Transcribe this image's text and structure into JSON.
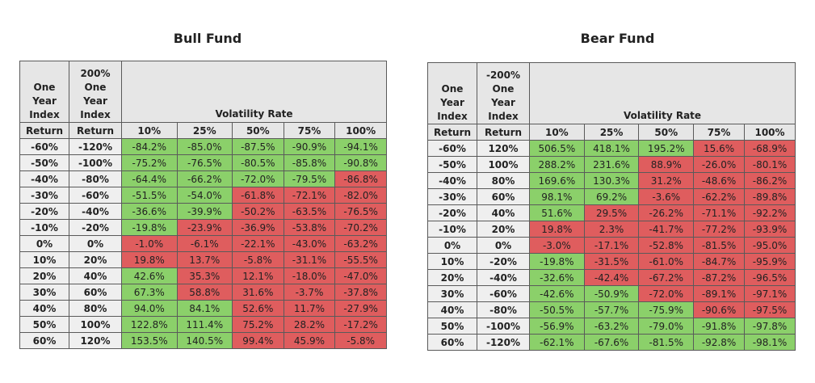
{
  "chart_data": [
    {
      "type": "table",
      "title": "Bull Fund",
      "col_headers": {
        "index_return": "One Year Index Return",
        "leveraged_return": "200% One Year Index Return",
        "group": "Volatility Rate",
        "volatility": [
          "10%",
          "25%",
          "50%",
          "75%",
          "100%"
        ]
      },
      "rows": [
        {
          "index": "-60%",
          "lev": "-120%",
          "values": [
            "-84.2%",
            "-85.0%",
            "-87.5%",
            "-90.9%",
            "-94.1%"
          ],
          "colors": [
            "g",
            "g",
            "g",
            "g",
            "g"
          ]
        },
        {
          "index": "-50%",
          "lev": "-100%",
          "values": [
            "-75.2%",
            "-76.5%",
            "-80.5%",
            "-85.8%",
            "-90.8%"
          ],
          "colors": [
            "g",
            "g",
            "g",
            "g",
            "g"
          ]
        },
        {
          "index": "-40%",
          "lev": "-80%",
          "values": [
            "-64.4%",
            "-66.2%",
            "-72.0%",
            "-79.5%",
            "-86.8%"
          ],
          "colors": [
            "g",
            "g",
            "g",
            "g",
            "r"
          ]
        },
        {
          "index": "-30%",
          "lev": "-60%",
          "values": [
            "-51.5%",
            "-54.0%",
            "-61.8%",
            "-72.1%",
            "-82.0%"
          ],
          "colors": [
            "g",
            "g",
            "r",
            "r",
            "r"
          ]
        },
        {
          "index": "-20%",
          "lev": "-40%",
          "values": [
            "-36.6%",
            "-39.9%",
            "-50.2%",
            "-63.5%",
            "-76.5%"
          ],
          "colors": [
            "g",
            "g",
            "r",
            "r",
            "r"
          ]
        },
        {
          "index": "-10%",
          "lev": "-20%",
          "values": [
            "-19.8%",
            "-23.9%",
            "-36.9%",
            "-53.8%",
            "-70.2%"
          ],
          "colors": [
            "g",
            "r",
            "r",
            "r",
            "r"
          ]
        },
        {
          "index": "0%",
          "lev": "0%",
          "values": [
            "-1.0%",
            "-6.1%",
            "-22.1%",
            "-43.0%",
            "-63.2%"
          ],
          "colors": [
            "r",
            "r",
            "r",
            "r",
            "r"
          ]
        },
        {
          "index": "10%",
          "lev": "20%",
          "values": [
            "19.8%",
            "13.7%",
            "-5.8%",
            "-31.1%",
            "-55.5%"
          ],
          "colors": [
            "r",
            "r",
            "r",
            "r",
            "r"
          ]
        },
        {
          "index": "20%",
          "lev": "40%",
          "values": [
            "42.6%",
            "35.3%",
            "12.1%",
            "-18.0%",
            "-47.0%"
          ],
          "colors": [
            "g",
            "r",
            "r",
            "r",
            "r"
          ]
        },
        {
          "index": "30%",
          "lev": "60%",
          "values": [
            "67.3%",
            "58.8%",
            "31.6%",
            "-3.7%",
            "-37.8%"
          ],
          "colors": [
            "g",
            "r",
            "r",
            "r",
            "r"
          ]
        },
        {
          "index": "40%",
          "lev": "80%",
          "values": [
            "94.0%",
            "84.1%",
            "52.6%",
            "11.7%",
            "-27.9%"
          ],
          "colors": [
            "g",
            "g",
            "r",
            "r",
            "r"
          ]
        },
        {
          "index": "50%",
          "lev": "100%",
          "values": [
            "122.8%",
            "111.4%",
            "75.2%",
            "28.2%",
            "-17.2%"
          ],
          "colors": [
            "g",
            "g",
            "r",
            "r",
            "r"
          ]
        },
        {
          "index": "60%",
          "lev": "120%",
          "values": [
            "153.5%",
            "140.5%",
            "99.4%",
            "45.9%",
            "-5.8%"
          ],
          "colors": [
            "g",
            "g",
            "r",
            "r",
            "r"
          ]
        }
      ]
    },
    {
      "type": "table",
      "title": "Bear Fund",
      "col_headers": {
        "index_return": "One Year Index Return",
        "leveraged_return": "-200% One Year Index Return",
        "group": "Volatility Rate",
        "volatility": [
          "10%",
          "25%",
          "50%",
          "75%",
          "100%"
        ]
      },
      "rows": [
        {
          "index": "-60%",
          "lev": "120%",
          "values": [
            "506.5%",
            "418.1%",
            "195.2%",
            "15.6%",
            "-68.9%"
          ],
          "colors": [
            "g",
            "g",
            "g",
            "r",
            "r"
          ]
        },
        {
          "index": "-50%",
          "lev": "100%",
          "values": [
            "288.2%",
            "231.6%",
            "88.9%",
            "-26.0%",
            "-80.1%"
          ],
          "colors": [
            "g",
            "g",
            "r",
            "r",
            "r"
          ]
        },
        {
          "index": "-40%",
          "lev": "80%",
          "values": [
            "169.6%",
            "130.3%",
            "31.2%",
            "-48.6%",
            "-86.2%"
          ],
          "colors": [
            "g",
            "g",
            "r",
            "r",
            "r"
          ]
        },
        {
          "index": "-30%",
          "lev": "60%",
          "values": [
            "98.1%",
            "69.2%",
            "-3.6%",
            "-62.2%",
            "-89.8%"
          ],
          "colors": [
            "g",
            "g",
            "r",
            "r",
            "r"
          ]
        },
        {
          "index": "-20%",
          "lev": "40%",
          "values": [
            "51.6%",
            "29.5%",
            "-26.2%",
            "-71.1%",
            "-92.2%"
          ],
          "colors": [
            "g",
            "r",
            "r",
            "r",
            "r"
          ]
        },
        {
          "index": "-10%",
          "lev": "20%",
          "values": [
            "19.8%",
            "2.3%",
            "-41.7%",
            "-77.2%",
            "-93.9%"
          ],
          "colors": [
            "r",
            "r",
            "r",
            "r",
            "r"
          ]
        },
        {
          "index": "0%",
          "lev": "0%",
          "values": [
            "-3.0%",
            "-17.1%",
            "-52.8%",
            "-81.5%",
            "-95.0%"
          ],
          "colors": [
            "r",
            "r",
            "r",
            "r",
            "r"
          ]
        },
        {
          "index": "10%",
          "lev": "-20%",
          "values": [
            "-19.8%",
            "-31.5%",
            "-61.0%",
            "-84.7%",
            "-95.9%"
          ],
          "colors": [
            "g",
            "r",
            "r",
            "r",
            "r"
          ]
        },
        {
          "index": "20%",
          "lev": "-40%",
          "values": [
            "-32.6%",
            "-42.4%",
            "-67.2%",
            "-87.2%",
            "-96.5%"
          ],
          "colors": [
            "g",
            "r",
            "r",
            "r",
            "r"
          ]
        },
        {
          "index": "30%",
          "lev": "-60%",
          "values": [
            "-42.6%",
            "-50.9%",
            "-72.0%",
            "-89.1%",
            "-97.1%"
          ],
          "colors": [
            "g",
            "g",
            "r",
            "r",
            "r"
          ]
        },
        {
          "index": "40%",
          "lev": "-80%",
          "values": [
            "-50.5%",
            "-57.7%",
            "-75.9%",
            "-90.6%",
            "-97.5%"
          ],
          "colors": [
            "g",
            "g",
            "g",
            "r",
            "r"
          ]
        },
        {
          "index": "50%",
          "lev": "-100%",
          "values": [
            "-56.9%",
            "-63.2%",
            "-79.0%",
            "-91.8%",
            "-97.8%"
          ],
          "colors": [
            "g",
            "g",
            "g",
            "g",
            "g"
          ]
        },
        {
          "index": "60%",
          "lev": "-120%",
          "values": [
            "-62.1%",
            "-67.6%",
            "-81.5%",
            "-92.8%",
            "-98.1%"
          ],
          "colors": [
            "g",
            "g",
            "g",
            "g",
            "g"
          ]
        }
      ]
    }
  ],
  "colors": {
    "green": "#8bd06a",
    "red": "#df5d5e",
    "header_bg": "#e6e6e6"
  },
  "bull": {
    "title": "Bull Fund",
    "h1_lines": [
      "One",
      "Year",
      "Index"
    ],
    "h2_lines": [
      "200%",
      "One",
      "Year",
      "Index"
    ],
    "return": "Return",
    "vol_label": "Volatility Rate"
  },
  "bear": {
    "title": "Bear Fund",
    "h1_lines": [
      "One",
      "Year",
      "Index"
    ],
    "h2_lines": [
      "-200%",
      "One",
      "Year",
      "Index"
    ],
    "return": "Return",
    "vol_label": "Volatility Rate"
  }
}
